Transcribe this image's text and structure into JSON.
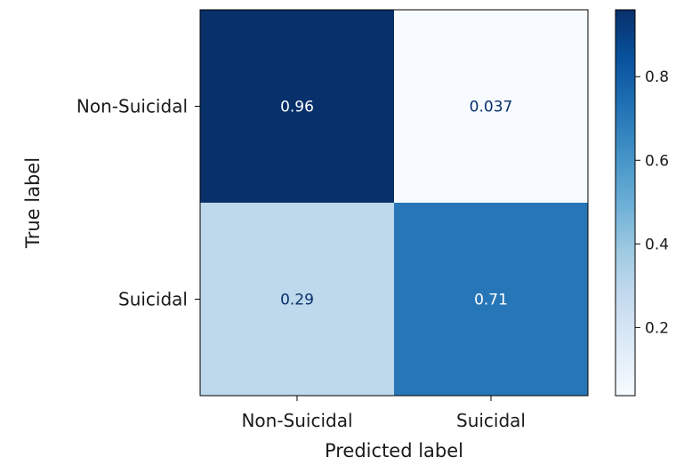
{
  "chart_data": {
    "type": "heatmap",
    "title": "",
    "xlabel": "Predicted label",
    "ylabel": "True label",
    "x_categories": [
      "Non-Suicidal",
      "Suicidal"
    ],
    "y_categories": [
      "Non-Suicidal",
      "Suicidal"
    ],
    "values": [
      [
        0.96,
        0.037
      ],
      [
        0.29,
        0.71
      ]
    ],
    "value_labels": [
      [
        "0.96",
        "0.037"
      ],
      [
        "0.29",
        "0.71"
      ]
    ],
    "colorbar": {
      "range": [
        0.037,
        0.96
      ],
      "ticks": [
        0.2,
        0.4,
        0.6,
        0.8
      ],
      "tick_labels": [
        "0.2",
        "0.4",
        "0.6",
        "0.8"
      ],
      "colormap": "Blues"
    },
    "colors": {
      "text_light": "#ffffff",
      "text_dark": "#08306b"
    }
  }
}
